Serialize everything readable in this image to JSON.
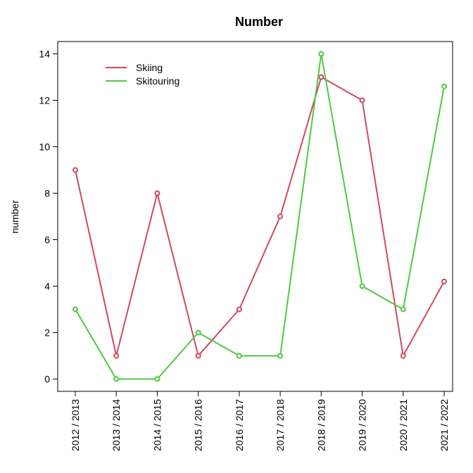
{
  "chart_data": {
    "type": "line",
    "title": "Number",
    "xlabel": "",
    "ylabel": "number",
    "categories": [
      "2012 / 2013",
      "2013 / 2014",
      "2014 / 2015",
      "2015 / 2016",
      "2016 / 2017",
      "2017 / 2018",
      "2018 / 2019",
      "2019 / 2020",
      "2020 / 2021",
      "2021 / 2022"
    ],
    "y_ticks": [
      0,
      2,
      4,
      6,
      8,
      10,
      12,
      14
    ],
    "ylim": [
      -0.56,
      14.56
    ],
    "grid": false,
    "legend_position": "top-left",
    "series": [
      {
        "name": "Skiing",
        "color": "#d1485e",
        "values": [
          9,
          1,
          8,
          1,
          3,
          7,
          13,
          12,
          1,
          4.2
        ]
      },
      {
        "name": "Skitouring",
        "color": "#4fc843",
        "values": [
          3,
          0,
          0,
          2,
          1,
          1,
          14,
          4,
          3,
          12.6
        ]
      }
    ]
  }
}
